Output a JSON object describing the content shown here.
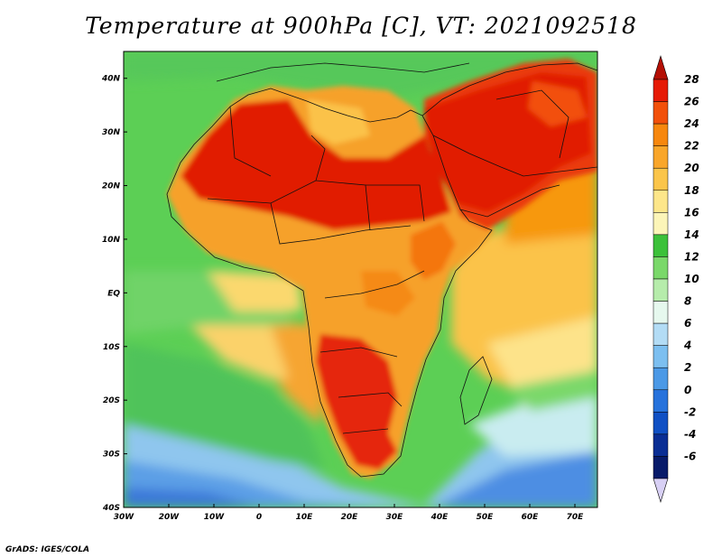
{
  "title": "Temperature at 900hPa [C], VT: 2021092518",
  "credit": "GrADS: IGES/COLA",
  "map": {
    "lon_range": [
      -30,
      75
    ],
    "lat_range": [
      -40,
      45
    ],
    "lat_labels": [
      {
        "lat": 40,
        "text": "40N"
      },
      {
        "lat": 30,
        "text": "30N"
      },
      {
        "lat": 20,
        "text": "20N"
      },
      {
        "lat": 10,
        "text": "10N"
      },
      {
        "lat": 0,
        "text": "EQ"
      },
      {
        "lat": -10,
        "text": "10S"
      },
      {
        "lat": -20,
        "text": "20S"
      },
      {
        "lat": -30,
        "text": "30S"
      },
      {
        "lat": -40,
        "text": "40S"
      }
    ],
    "lon_labels": [
      {
        "lon": -30,
        "text": "30W"
      },
      {
        "lon": -20,
        "text": "20W"
      },
      {
        "lon": -10,
        "text": "10W"
      },
      {
        "lon": 0,
        "text": "0"
      },
      {
        "lon": 10,
        "text": "10E"
      },
      {
        "lon": 20,
        "text": "20E"
      },
      {
        "lon": 30,
        "text": "30E"
      },
      {
        "lon": 40,
        "text": "40E"
      },
      {
        "lon": 50,
        "text": "50E"
      },
      {
        "lon": 60,
        "text": "60E"
      },
      {
        "lon": 70,
        "text": "70E"
      }
    ]
  },
  "colorbar": {
    "labels": [
      "28",
      "26",
      "24",
      "22",
      "20",
      "18",
      "16",
      "14",
      "12",
      "10",
      "8",
      "6",
      "4",
      "2",
      "0",
      "-2",
      "-4",
      "-6"
    ],
    "colors": [
      "#e61b06",
      "#f2500a",
      "#f7870e",
      "#f9a62a",
      "#fbc54a",
      "#fde68a",
      "#fcf5b8",
      "#3cc13a",
      "#7ad86a",
      "#b6ecab",
      "#e6f8ee",
      "#b3dcf5",
      "#7cbff0",
      "#4b99e6",
      "#2672dc",
      "#1050c4",
      "#0a2e94",
      "#081b6a"
    ],
    "top_arrow_color": "#b40f05",
    "bottom_arrow_color": "#d8d0f5"
  }
}
